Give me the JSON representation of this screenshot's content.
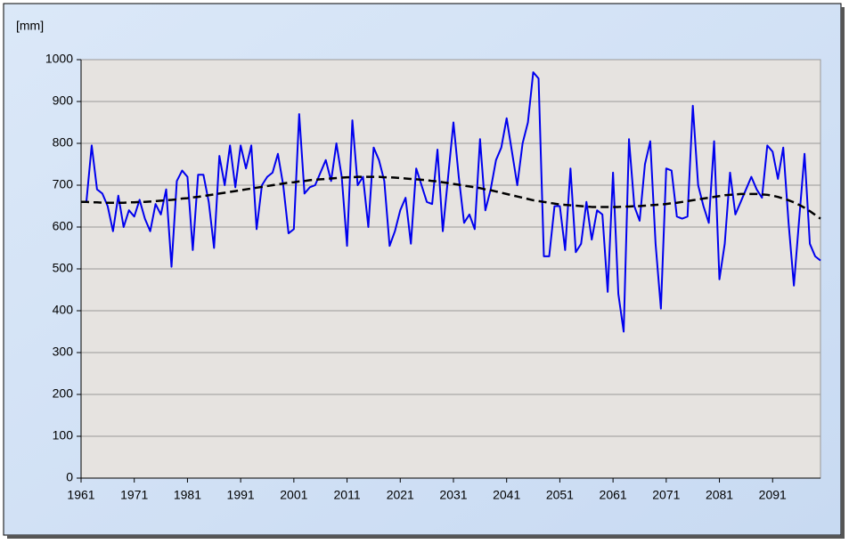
{
  "chart_data": {
    "type": "line",
    "y_label": "[mm]",
    "x": [
      1961,
      1962,
      1963,
      1964,
      1965,
      1966,
      1967,
      1968,
      1969,
      1970,
      1971,
      1972,
      1973,
      1974,
      1975,
      1976,
      1977,
      1978,
      1979,
      1980,
      1981,
      1982,
      1983,
      1984,
      1985,
      1986,
      1987,
      1988,
      1989,
      1990,
      1991,
      1992,
      1993,
      1994,
      1995,
      1996,
      1997,
      1998,
      1999,
      2000,
      2001,
      2002,
      2003,
      2004,
      2005,
      2006,
      2007,
      2008,
      2009,
      2010,
      2011,
      2012,
      2013,
      2014,
      2015,
      2016,
      2017,
      2018,
      2019,
      2020,
      2021,
      2022,
      2023,
      2024,
      2025,
      2026,
      2027,
      2028,
      2029,
      2030,
      2031,
      2032,
      2033,
      2034,
      2035,
      2036,
      2037,
      2038,
      2039,
      2040,
      2041,
      2042,
      2043,
      2044,
      2045,
      2046,
      2047,
      2048,
      2049,
      2050,
      2051,
      2052,
      2053,
      2054,
      2055,
      2056,
      2057,
      2058,
      2059,
      2060,
      2061,
      2062,
      2063,
      2064,
      2065,
      2066,
      2067,
      2068,
      2069,
      2070,
      2071,
      2072,
      2073,
      2074,
      2075,
      2076,
      2077,
      2078,
      2079,
      2080,
      2081,
      2082,
      2083,
      2084,
      2085,
      2086,
      2087,
      2088,
      2089,
      2090,
      2091,
      2092,
      2093,
      2094,
      2095,
      2096,
      2097,
      2098,
      2099,
      2100
    ],
    "series": [
      {
        "color": "#0000ee",
        "dashed": false,
        "values": [
          660,
          660,
          795,
          690,
          680,
          650,
          590,
          675,
          600,
          640,
          625,
          665,
          620,
          590,
          655,
          630,
          690,
          505,
          710,
          735,
          720,
          545,
          725,
          725,
          660,
          550,
          770,
          700,
          795,
          695,
          795,
          740,
          795,
          595,
          700,
          720,
          730,
          775,
          700,
          585,
          595,
          870,
          680,
          695,
          700,
          730,
          760,
          710,
          800,
          720,
          555,
          855,
          700,
          720,
          600,
          790,
          760,
          710,
          555,
          590,
          640,
          670,
          560,
          740,
          700,
          660,
          655,
          785,
          590,
          720,
          850,
          720,
          610,
          630,
          595,
          810,
          640,
          690,
          760,
          790,
          860,
          780,
          700,
          800,
          850,
          970,
          955,
          530,
          530,
          650,
          650,
          545,
          740,
          540,
          560,
          660,
          570,
          640,
          630,
          445,
          730,
          440,
          350,
          810,
          650,
          615,
          750,
          805,
          560,
          405,
          740,
          735,
          625,
          620,
          625,
          890,
          700,
          650,
          610,
          805,
          475,
          560,
          730,
          630,
          660,
          690,
          720,
          690,
          670,
          795,
          780,
          715,
          790,
          610,
          460,
          620,
          775,
          560,
          530,
          520
        ]
      },
      {
        "color": "#000000",
        "dashed": true,
        "values": [
          660,
          660,
          659,
          659,
          658,
          658,
          658,
          658,
          658,
          659,
          659,
          660,
          660,
          661,
          662,
          663,
          664,
          665,
          666,
          668,
          669,
          671,
          672,
          674,
          676,
          678,
          680,
          682,
          684,
          686,
          688,
          690,
          692,
          694,
          696,
          698,
          700,
          702,
          704,
          706,
          707,
          709,
          710,
          712,
          713,
          714,
          715,
          716,
          717,
          718,
          719,
          719,
          720,
          720,
          720,
          720,
          720,
          719,
          719,
          718,
          717,
          716,
          715,
          714,
          713,
          712,
          710,
          709,
          707,
          705,
          703,
          701,
          699,
          697,
          695,
          693,
          690,
          688,
          685,
          682,
          679,
          676,
          673,
          670,
          667,
          664,
          662,
          660,
          658,
          656,
          654,
          653,
          652,
          651,
          650,
          649,
          648,
          648,
          648,
          648,
          648,
          648,
          649,
          649,
          650,
          650,
          651,
          652,
          653,
          654,
          655,
          657,
          658,
          660,
          662,
          664,
          666,
          668,
          670,
          672,
          674,
          676,
          677,
          678,
          679,
          679,
          679,
          679,
          678,
          677,
          675,
          672,
          668,
          664,
          659,
          653,
          646,
          638,
          629,
          620
        ]
      }
    ],
    "xlim": [
      1961,
      2100
    ],
    "xticks": [
      1961,
      1971,
      1981,
      1991,
      2001,
      2011,
      2021,
      2031,
      2041,
      2051,
      2061,
      2071,
      2081,
      2091
    ],
    "ylim": [
      0,
      1000
    ],
    "yticks": [
      0,
      100,
      200,
      300,
      400,
      500,
      600,
      700,
      800,
      900,
      1000
    ],
    "grid": true
  }
}
